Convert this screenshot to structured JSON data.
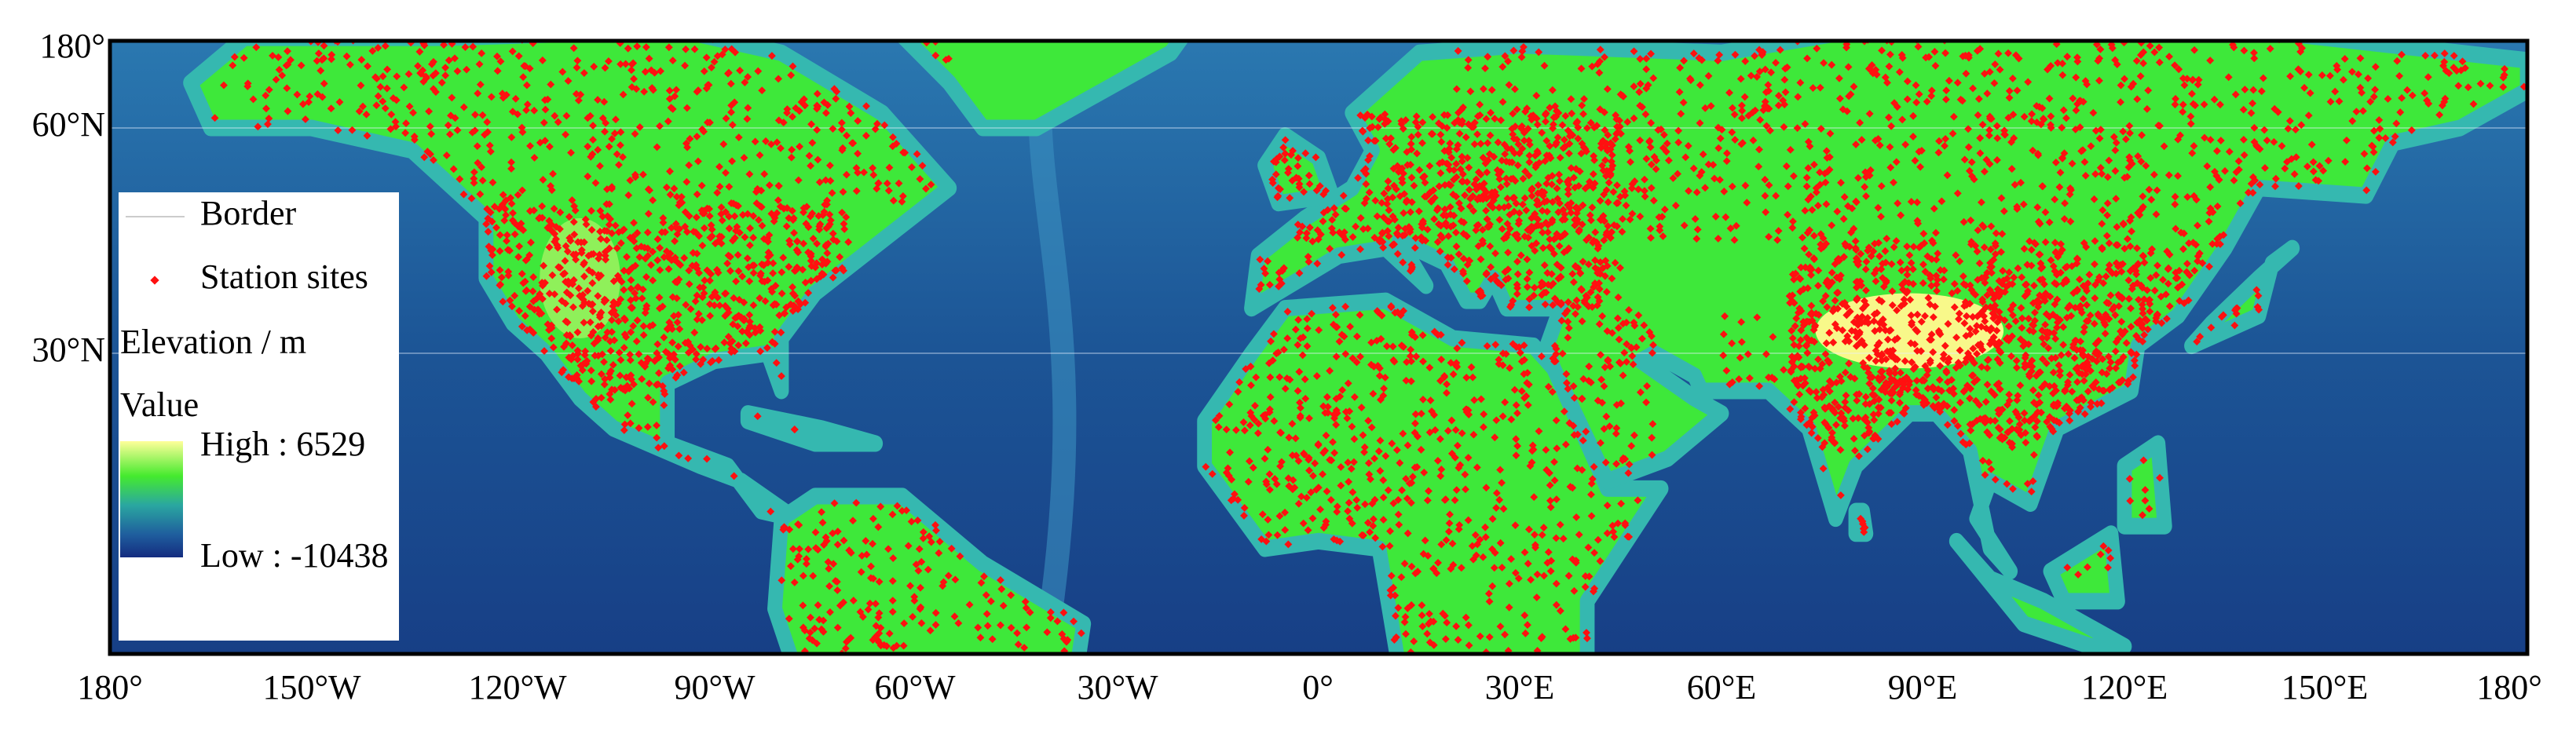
{
  "axes": {
    "x_labels": [
      "180°",
      "150°W",
      "120°W",
      "90°W",
      "60°W",
      "30°W",
      "0°",
      "30°E",
      "60°E",
      "90°E",
      "120°E",
      "150°E",
      "180°"
    ],
    "y_labels": [
      "180°",
      "60°N",
      "30°N"
    ]
  },
  "legend": {
    "border": "Border",
    "stations": "Station sites",
    "elevation_title": "Elevation / m",
    "value_title": "Value",
    "high": "High : 6529",
    "low": "Low : -10438"
  }
}
